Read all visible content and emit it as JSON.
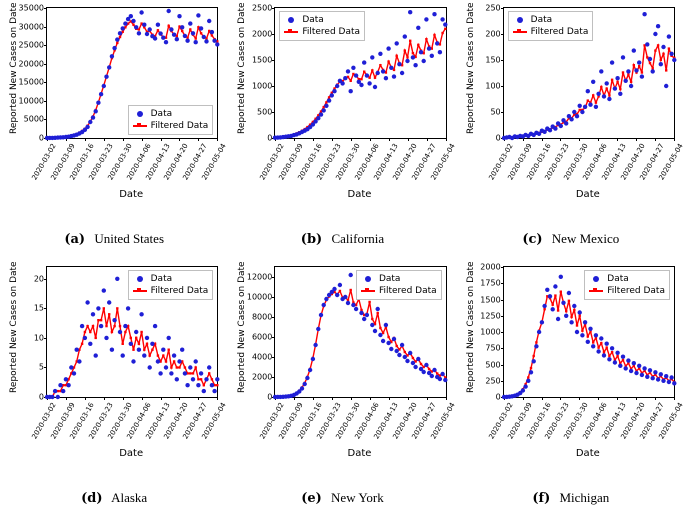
{
  "global": {
    "xlabel": "Date",
    "ylabel": "Reported New Cases on Date",
    "xticks": [
      "2020-03-02",
      "2020-03-09",
      "2020-03-16",
      "2020-03-23",
      "2020-03-30",
      "2020-04-06",
      "2020-04-13",
      "2020-04-20",
      "2020-04-27",
      "2020-05-04"
    ],
    "data_color": "#1f1fd6",
    "filtered_color": "#ff0000",
    "marker_radius": 2.2,
    "filtered_marker_size": 2.4,
    "line_width": 1.4,
    "legend_data_label": "Data",
    "legend_filtered_label": "Filtered Data",
    "axis_color": "#000000",
    "background_color": "#ffffff",
    "tick_fontsize": 8,
    "label_fontsize": 10,
    "caption_fontsize": 13,
    "n_points": 64
  },
  "panels": [
    {
      "id": "a",
      "caption_letter": "(a)",
      "caption_text": "United States",
      "ylim": [
        0,
        35000
      ],
      "yticks": [
        0,
        5000,
        10000,
        15000,
        20000,
        25000,
        30000,
        35000
      ],
      "legend_pos": "lower-right",
      "data": [
        20,
        30,
        40,
        60,
        100,
        150,
        200,
        280,
        350,
        500,
        700,
        900,
        1200,
        1600,
        2200,
        3000,
        4300,
        5500,
        7200,
        9500,
        11800,
        14000,
        16500,
        19000,
        22000,
        24200,
        26500,
        28200,
        29500,
        30800,
        32000,
        32800,
        31500,
        29800,
        28200,
        33800,
        30500,
        28000,
        29200,
        27400,
        26800,
        30500,
        28100,
        27000,
        25800,
        34200,
        29200,
        27800,
        26600,
        32800,
        29800,
        27500,
        26200,
        30800,
        28200,
        25800,
        33000,
        29500,
        27200,
        26000,
        31500,
        28500,
        26200,
        25200
      ],
      "filtered": [
        20,
        35,
        55,
        85,
        130,
        190,
        260,
        350,
        480,
        650,
        870,
        1100,
        1450,
        1900,
        2500,
        3300,
        4400,
        5800,
        7500,
        9600,
        11900,
        14200,
        16600,
        19000,
        21500,
        23600,
        25600,
        27200,
        28600,
        29800,
        30800,
        31400,
        30500,
        29400,
        29200,
        30800,
        29800,
        28600,
        28800,
        27800,
        27400,
        29000,
        27900,
        27200,
        27000,
        30200,
        28800,
        27800,
        27400,
        30000,
        28800,
        27500,
        27000,
        29200,
        27800,
        26800,
        29800,
        28200,
        27200,
        26800,
        28800,
        27600,
        26600,
        26000
      ]
    },
    {
      "id": "b",
      "caption_letter": "(b)",
      "caption_text": "California",
      "ylim": [
        0,
        2500
      ],
      "yticks": [
        0,
        500,
        1000,
        1500,
        2000,
        2500
      ],
      "legend_pos": "upper-left",
      "data": [
        5,
        8,
        12,
        18,
        25,
        32,
        40,
        55,
        70,
        90,
        115,
        140,
        170,
        210,
        260,
        320,
        380,
        450,
        530,
        620,
        720,
        820,
        900,
        1000,
        1100,
        1050,
        1150,
        1280,
        900,
        1350,
        1200,
        1080,
        1020,
        1450,
        1200,
        1050,
        1550,
        980,
        1250,
        1620,
        1280,
        1150,
        1720,
        1350,
        1180,
        1820,
        1420,
        1250,
        1950,
        1480,
        2420,
        1550,
        1400,
        2120,
        1650,
        1480,
        2280,
        1720,
        1580,
        2380,
        1820,
        1650,
        2280,
        2180
      ],
      "filtered": [
        5,
        10,
        15,
        22,
        30,
        40,
        52,
        68,
        88,
        112,
        140,
        172,
        210,
        255,
        310,
        370,
        435,
        510,
        595,
        685,
        780,
        870,
        950,
        1025,
        1080,
        1095,
        1145,
        1175,
        1100,
        1230,
        1200,
        1130,
        1130,
        1275,
        1210,
        1160,
        1300,
        1160,
        1270,
        1400,
        1310,
        1260,
        1470,
        1360,
        1310,
        1580,
        1440,
        1400,
        1680,
        1550,
        1870,
        1630,
        1560,
        1790,
        1680,
        1630,
        1900,
        1760,
        1720,
        1980,
        1840,
        1800,
        2020,
        2100
      ]
    },
    {
      "id": "c",
      "caption_letter": "(c)",
      "caption_text": "New Mexico",
      "ylim": [
        0,
        250
      ],
      "yticks": [
        0,
        50,
        100,
        150,
        200,
        250
      ],
      "legend_pos": "upper-left",
      "data": [
        0,
        1,
        2,
        0,
        3,
        2,
        4,
        3,
        6,
        4,
        8,
        6,
        10,
        8,
        14,
        12,
        18,
        15,
        22,
        18,
        28,
        23,
        34,
        28,
        42,
        36,
        50,
        42,
        62,
        50,
        60,
        90,
        64,
        108,
        60,
        85,
        128,
        80,
        105,
        75,
        145,
        95,
        115,
        85,
        155,
        110,
        128,
        100,
        168,
        130,
        145,
        118,
        238,
        180,
        152,
        128,
        200,
        215,
        142,
        175,
        100,
        195,
        162,
        150
      ],
      "filtered": [
        0,
        1,
        1,
        1,
        2,
        2,
        3,
        4,
        5,
        5,
        7,
        7,
        9,
        10,
        12,
        13,
        16,
        17,
        20,
        21,
        25,
        26,
        30,
        31,
        38,
        38,
        45,
        46,
        54,
        54,
        58,
        72,
        68,
        82,
        68,
        80,
        98,
        82,
        95,
        82,
        112,
        95,
        108,
        94,
        126,
        110,
        122,
        108,
        140,
        126,
        138,
        126,
        178,
        155,
        144,
        134,
        168,
        178,
        150,
        162,
        130,
        172,
        158,
        154
      ]
    },
    {
      "id": "d",
      "caption_letter": "(d)",
      "caption_text": "Alaska",
      "ylim": [
        0,
        22
      ],
      "yticks": [
        0,
        5,
        10,
        15,
        20
      ],
      "legend_pos": "upper-right",
      "data": [
        0,
        0,
        0,
        1,
        0,
        2,
        1,
        3,
        2,
        5,
        4,
        8,
        6,
        12,
        10,
        16,
        9,
        14,
        7,
        15,
        12,
        18,
        10,
        16,
        8,
        13,
        20,
        11,
        7,
        12,
        15,
        9,
        6,
        11,
        8,
        14,
        7,
        10,
        5,
        9,
        12,
        6,
        4,
        8,
        5,
        10,
        4,
        7,
        3,
        6,
        8,
        4,
        2,
        5,
        3,
        6,
        2,
        4,
        1,
        3,
        5,
        2,
        1,
        3
      ],
      "filtered": [
        0,
        0,
        0,
        1,
        1,
        1,
        2,
        2,
        3,
        4,
        5,
        6,
        8,
        9,
        11,
        12,
        11,
        12,
        10,
        13,
        13,
        15,
        12,
        14,
        11,
        12,
        15,
        12,
        9,
        11,
        12,
        10,
        8,
        10,
        9,
        11,
        8,
        9,
        7,
        8,
        9,
        7,
        6,
        7,
        6,
        8,
        5,
        6,
        5,
        5,
        6,
        5,
        4,
        4,
        4,
        5,
        3,
        3,
        2,
        3,
        4,
        3,
        2,
        2
      ]
    },
    {
      "id": "e",
      "caption_letter": "(e)",
      "caption_text": "New York",
      "ylim": [
        0,
        13000
      ],
      "yticks": [
        0,
        2000,
        4000,
        6000,
        8000,
        10000,
        12000
      ],
      "legend_pos": "upper-right",
      "data": [
        0,
        5,
        10,
        20,
        40,
        70,
        120,
        200,
        350,
        550,
        850,
        1300,
        1900,
        2700,
        3800,
        5200,
        6800,
        8200,
        9200,
        9800,
        10200,
        10500,
        10800,
        10200,
        11200,
        9800,
        10000,
        9400,
        12200,
        9200,
        8800,
        10800,
        8400,
        7800,
        8200,
        11500,
        7200,
        6600,
        8800,
        6200,
        5600,
        7200,
        5400,
        4800,
        5800,
        4600,
        4200,
        5200,
        4000,
        3600,
        4400,
        3400,
        3000,
        3800,
        2800,
        2500,
        3200,
        2400,
        2100,
        2700,
        2000,
        1800,
        2300,
        1700
      ],
      "filtered": [
        0,
        5,
        12,
        25,
        48,
        85,
        145,
        245,
        400,
        625,
        950,
        1400,
        2000,
        2800,
        3900,
        5250,
        6800,
        8150,
        9100,
        9700,
        10050,
        10300,
        10500,
        10250,
        10600,
        9950,
        10000,
        9650,
        10700,
        9450,
        9200,
        9800,
        8700,
        8200,
        8300,
        9500,
        7800,
        7300,
        8400,
        6900,
        6400,
        7000,
        6000,
        5500,
        5900,
        5100,
        4750,
        5100,
        4500,
        4150,
        4400,
        3900,
        3550,
        3800,
        3300,
        3000,
        3200,
        2800,
        2550,
        2700,
        2350,
        2150,
        2300,
        1950
      ]
    },
    {
      "id": "f",
      "caption_letter": "(f)",
      "caption_text": "Michigan",
      "ylim": [
        0,
        2000
      ],
      "yticks": [
        0,
        250,
        500,
        750,
        1000,
        1250,
        1500,
        1750,
        2000
      ],
      "legend_pos": "upper-right",
      "data": [
        0,
        2,
        5,
        10,
        20,
        35,
        60,
        100,
        160,
        250,
        380,
        550,
        780,
        1000,
        1150,
        1400,
        1650,
        1550,
        1350,
        1700,
        1200,
        1850,
        1450,
        1250,
        1600,
        1150,
        1400,
        1000,
        1300,
        950,
        1150,
        850,
        1050,
        780,
        950,
        700,
        900,
        640,
        820,
        580,
        750,
        530,
        680,
        480,
        620,
        440,
        560,
        400,
        520,
        370,
        480,
        340,
        440,
        310,
        410,
        290,
        380,
        270,
        350,
        250,
        320,
        230,
        300,
        210
      ],
      "filtered": [
        0,
        2,
        6,
        12,
        24,
        42,
        72,
        120,
        195,
        300,
        445,
        630,
        840,
        1020,
        1150,
        1350,
        1550,
        1520,
        1420,
        1560,
        1330,
        1620,
        1450,
        1320,
        1480,
        1230,
        1340,
        1100,
        1250,
        1020,
        1120,
        930,
        1010,
        840,
        910,
        760,
        830,
        690,
        760,
        630,
        690,
        570,
        630,
        520,
        570,
        475,
        520,
        435,
        480,
        400,
        440,
        370,
        405,
        340,
        375,
        315,
        345,
        290,
        320,
        270,
        295,
        250,
        275,
        230
      ]
    }
  ]
}
